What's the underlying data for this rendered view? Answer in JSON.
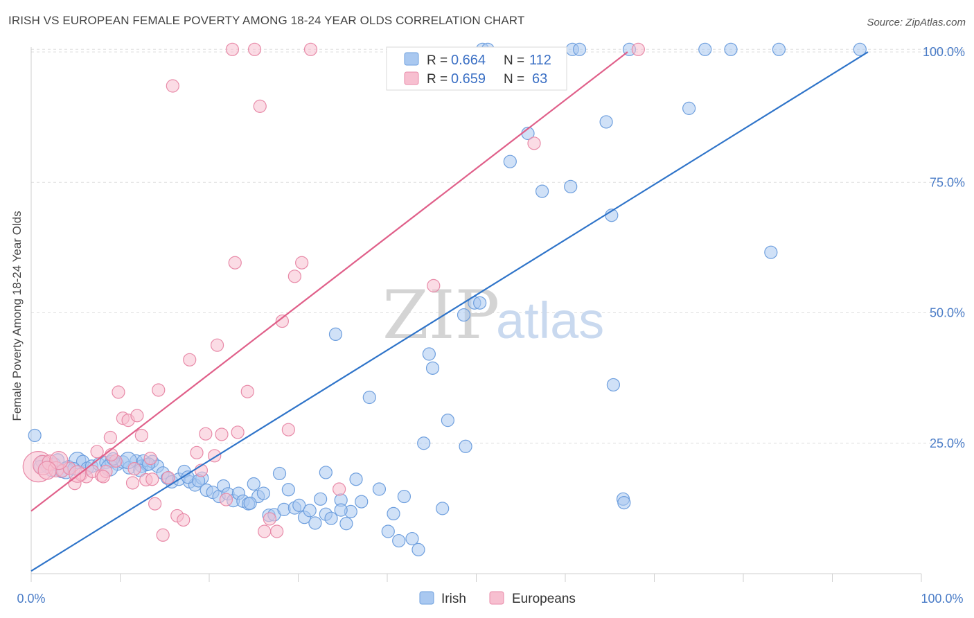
{
  "title": "IRISH VS EUROPEAN FEMALE POVERTY AMONG 18-24 YEAR OLDS CORRELATION CHART",
  "source": "Source: ZipAtlas.com",
  "watermark": {
    "zip": "ZIP",
    "atlas": "atlas"
  },
  "colors": {
    "irish_fill": "#a9c8f0",
    "irish_stroke": "#6e9fde",
    "irish_line": "#2f74c9",
    "europeans_fill": "#f7bfd0",
    "europeans_stroke": "#e88aa8",
    "europeans_line": "#e0608a",
    "grid": "#dddddd",
    "tick_label": "#4a7cc7"
  },
  "legend": {
    "rows": [
      {
        "r_label": "R =",
        "r_value": "0.664",
        "n_label": "N =",
        "n_value": "112"
      },
      {
        "r_label": "R =",
        "r_value": "0.659",
        "n_label": "N =",
        "n_value": "63"
      }
    ]
  },
  "bottom_legend": [
    "Irish",
    "Europeans"
  ],
  "chart_data": {
    "type": "scatter",
    "title": "IRISH VS EUROPEAN FEMALE POVERTY AMONG 18-24 YEAR OLDS CORRELATION CHART",
    "xlabel": "",
    "ylabel": "Female Poverty Among 18-24 Year Olds",
    "xlim": [
      0,
      100
    ],
    "ylim": [
      0,
      102
    ],
    "x_tick_labels": [
      "0.0%",
      "100.0%"
    ],
    "y_ticks": [
      25,
      50,
      75,
      100
    ],
    "y_tick_labels": [
      "25.0%",
      "50.0%",
      "75.0%",
      "100.0%"
    ],
    "grid": "horizontal dashed",
    "legend_position": "top-center",
    "series": [
      {
        "name": "Irish",
        "regression": {
          "x": [
            0,
            94
          ],
          "y": [
            0.5,
            100
          ]
        },
        "points": [
          [
            0.4,
            26.5,
            9
          ],
          [
            1.2,
            21.5,
            9
          ],
          [
            1.8,
            20.5,
            9
          ],
          [
            2.3,
            19.8,
            9
          ],
          [
            2.6,
            21.0,
            9
          ],
          [
            3.0,
            21.8,
            9
          ],
          [
            3.4,
            19.6,
            9
          ],
          [
            4.2,
            20.5,
            9
          ],
          [
            5.2,
            21.7,
            12
          ],
          [
            5.8,
            21.5,
            9
          ],
          [
            6.3,
            20.2,
            9
          ],
          [
            6.8,
            20.6,
            9
          ],
          [
            7.6,
            21.0,
            9
          ],
          [
            8.4,
            21.3,
            9
          ],
          [
            9.0,
            21.5,
            9
          ],
          [
            9.7,
            21.0,
            9
          ],
          [
            10.3,
            21.4,
            9
          ],
          [
            11.0,
            20.3,
            9
          ],
          [
            11.8,
            21.6,
            9
          ],
          [
            12.4,
            20.6,
            9
          ],
          [
            13.0,
            20.9,
            9
          ],
          [
            13.6,
            21.5,
            9
          ],
          [
            14.2,
            20.6,
            9
          ],
          [
            14.8,
            19.3,
            9
          ],
          [
            15.3,
            18.3,
            9
          ],
          [
            15.8,
            17.6,
            9
          ],
          [
            16.6,
            18.1,
            9
          ],
          [
            17.2,
            19.6,
            9
          ],
          [
            17.8,
            17.6,
            9
          ],
          [
            18.4,
            17.0,
            9
          ],
          [
            19.2,
            18.3,
            9
          ],
          [
            19.7,
            16.0,
            9
          ],
          [
            20.4,
            15.6,
            9
          ],
          [
            21.1,
            14.8,
            9
          ],
          [
            21.6,
            16.8,
            9
          ],
          [
            22.1,
            15.3,
            9
          ],
          [
            22.7,
            14.0,
            9
          ],
          [
            23.3,
            15.4,
            9
          ],
          [
            23.8,
            13.9,
            9
          ],
          [
            24.4,
            13.4,
            9
          ],
          [
            25.0,
            17.2,
            9
          ],
          [
            25.5,
            14.8,
            9
          ],
          [
            26.1,
            15.4,
            9
          ],
          [
            26.7,
            11.2,
            9
          ],
          [
            27.3,
            11.3,
            9
          ],
          [
            27.9,
            19.2,
            9
          ],
          [
            28.4,
            12.3,
            9
          ],
          [
            28.9,
            16.1,
            9
          ],
          [
            29.6,
            12.6,
            9
          ],
          [
            30.1,
            13.1,
            9
          ],
          [
            30.7,
            10.8,
            9
          ],
          [
            31.3,
            12.1,
            9
          ],
          [
            31.9,
            9.7,
            9
          ],
          [
            32.5,
            14.3,
            9
          ],
          [
            33.1,
            11.4,
            9
          ],
          [
            33.7,
            10.6,
            9
          ],
          [
            33.1,
            19.4,
            9
          ],
          [
            34.2,
            45.9,
            9
          ],
          [
            34.8,
            14.1,
            9
          ],
          [
            35.4,
            9.6,
            9
          ],
          [
            35.9,
            11.9,
            9
          ],
          [
            36.5,
            18.1,
            9
          ],
          [
            37.1,
            13.8,
            9
          ],
          [
            38.0,
            33.8,
            9
          ],
          [
            39.1,
            16.2,
            9
          ],
          [
            40.1,
            8.1,
            9
          ],
          [
            40.7,
            11.5,
            9
          ],
          [
            41.3,
            6.3,
            9
          ],
          [
            41.9,
            14.8,
            9
          ],
          [
            42.8,
            6.7,
            9
          ],
          [
            43.5,
            4.6,
            9
          ],
          [
            44.1,
            25.0,
            9
          ],
          [
            44.7,
            42.1,
            9
          ],
          [
            45.1,
            39.4,
            9
          ],
          [
            46.2,
            12.5,
            9
          ],
          [
            46.8,
            29.4,
            9
          ],
          [
            48.6,
            49.6,
            9
          ],
          [
            48.8,
            24.4,
            9
          ],
          [
            49.8,
            51.9,
            9
          ],
          [
            50.4,
            51.9,
            9
          ],
          [
            50.7,
            100.5,
            9
          ],
          [
            51.3,
            100.5,
            9
          ],
          [
            53.8,
            79.0,
            9
          ],
          [
            55.8,
            84.4,
            9
          ],
          [
            57.4,
            73.3,
            9
          ],
          [
            60.6,
            74.2,
            9
          ],
          [
            60.8,
            100.5,
            9
          ],
          [
            61.6,
            100.5,
            9
          ],
          [
            64.6,
            86.6,
            9
          ],
          [
            65.2,
            68.7,
            9
          ],
          [
            65.4,
            36.2,
            9
          ],
          [
            66.5,
            14.3,
            9
          ],
          [
            66.6,
            13.6,
            9
          ],
          [
            67.2,
            100.5,
            9
          ],
          [
            73.9,
            89.2,
            9
          ],
          [
            75.7,
            100.5,
            9
          ],
          [
            78.6,
            100.5,
            9
          ],
          [
            83.1,
            61.6,
            9
          ],
          [
            84.0,
            100.5,
            9
          ],
          [
            93.1,
            100.5,
            9
          ],
          [
            8.8,
            20.3,
            12
          ],
          [
            10.9,
            21.7,
            12
          ],
          [
            12.6,
            21.6,
            9
          ],
          [
            3.9,
            19.8,
            12
          ],
          [
            4.8,
            20.1,
            9
          ],
          [
            12.2,
            19.8,
            9
          ],
          [
            9.2,
            22.0,
            9
          ],
          [
            17.6,
            18.5,
            9
          ],
          [
            24.6,
            13.5,
            9
          ],
          [
            34.8,
            12.2,
            9
          ],
          [
            13.2,
            21.0,
            9
          ],
          [
            18.8,
            17.8,
            9
          ],
          [
            1.0,
            20.5,
            9
          ]
        ]
      },
      {
        "name": "Europeans",
        "regression": {
          "x": [
            0,
            67
          ],
          "y": [
            12,
            100
          ]
        },
        "points": [
          [
            0.8,
            20.5,
            22
          ],
          [
            1.3,
            20.8,
            14
          ],
          [
            2.1,
            21.3,
            11
          ],
          [
            2.8,
            20.0,
            11
          ],
          [
            3.5,
            19.7,
            9
          ],
          [
            4.3,
            20.2,
            9
          ],
          [
            4.9,
            17.3,
            9
          ],
          [
            5.6,
            19.0,
            9
          ],
          [
            6.2,
            18.6,
            9
          ],
          [
            6.9,
            19.6,
            9
          ],
          [
            7.4,
            23.4,
            9
          ],
          [
            7.9,
            18.8,
            9
          ],
          [
            8.4,
            19.6,
            9
          ],
          [
            8.9,
            26.1,
            9
          ],
          [
            9.5,
            21.6,
            9
          ],
          [
            9.8,
            34.8,
            9
          ],
          [
            10.3,
            29.8,
            9
          ],
          [
            10.9,
            29.4,
            9
          ],
          [
            11.4,
            17.4,
            9
          ],
          [
            11.9,
            30.3,
            9
          ],
          [
            12.4,
            26.5,
            9
          ],
          [
            12.9,
            18.0,
            9
          ],
          [
            13.4,
            22.1,
            9
          ],
          [
            13.9,
            13.4,
            9
          ],
          [
            14.3,
            35.2,
            9
          ],
          [
            14.8,
            7.4,
            9
          ],
          [
            15.9,
            93.5,
            9
          ],
          [
            16.4,
            11.1,
            9
          ],
          [
            17.1,
            10.3,
            9
          ],
          [
            17.8,
            41.0,
            9
          ],
          [
            18.6,
            23.2,
            9
          ],
          [
            19.1,
            19.8,
            9
          ],
          [
            19.6,
            26.8,
            9
          ],
          [
            20.6,
            22.6,
            9
          ],
          [
            20.9,
            43.8,
            9
          ],
          [
            21.4,
            26.7,
            9
          ],
          [
            21.9,
            14.2,
            9
          ],
          [
            22.6,
            100.5,
            9
          ],
          [
            22.9,
            59.6,
            9
          ],
          [
            23.2,
            27.1,
            9
          ],
          [
            24.3,
            34.9,
            9
          ],
          [
            25.1,
            100.5,
            9
          ],
          [
            25.7,
            89.6,
            9
          ],
          [
            26.2,
            8.1,
            9
          ],
          [
            26.8,
            10.5,
            9
          ],
          [
            27.6,
            8.1,
            9
          ],
          [
            28.2,
            48.4,
            9
          ],
          [
            28.9,
            27.6,
            9
          ],
          [
            29.6,
            57.0,
            9
          ],
          [
            30.4,
            59.6,
            9
          ],
          [
            31.4,
            100.5,
            9
          ],
          [
            34.6,
            16.2,
            9
          ],
          [
            45.2,
            55.2,
            9
          ],
          [
            56.5,
            82.5,
            9
          ],
          [
            68.2,
            100.5,
            9
          ],
          [
            3.1,
            21.7,
            13
          ],
          [
            1.8,
            19.8,
            13
          ],
          [
            5.2,
            19.1,
            12
          ],
          [
            9.0,
            22.8,
            9
          ],
          [
            11.6,
            20.1,
            9
          ],
          [
            13.6,
            18.1,
            9
          ],
          [
            8.1,
            18.6,
            9
          ],
          [
            15.4,
            18.4,
            9
          ]
        ]
      }
    ]
  }
}
